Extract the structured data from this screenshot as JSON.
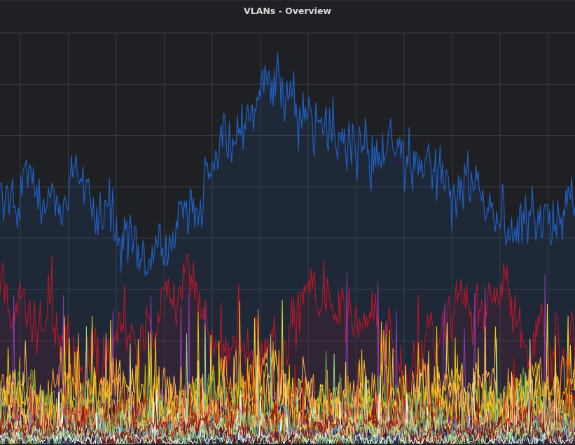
{
  "panel": {
    "title": "VLANs - Overview"
  },
  "chart_data": {
    "type": "line",
    "title": "VLANs - Overview",
    "xlabel": "",
    "ylabel": "",
    "grid": true,
    "legend": "none",
    "x_count": 500,
    "ylim": [
      0,
      100
    ],
    "series": [
      {
        "color": "#1f60c4",
        "fill": true,
        "level": 58,
        "amp": 12,
        "noise": 10,
        "spike": 3,
        "shape": "hump"
      },
      {
        "color": "#c4162a",
        "fill": true,
        "level": 28,
        "amp": 6,
        "noise": 10,
        "spike": 14,
        "shape": "flat"
      },
      {
        "color": "#8f3bb8",
        "fill": false,
        "level": 8,
        "amp": 2,
        "noise": 4,
        "spike": 30,
        "shape": "flat"
      },
      {
        "color": "#fade2a",
        "fill": false,
        "level": 10,
        "amp": 3,
        "noise": 9,
        "spike": 18,
        "shape": "flat"
      },
      {
        "color": "#ff9830",
        "fill": false,
        "level": 11,
        "amp": 3,
        "noise": 10,
        "spike": 16,
        "shape": "flat"
      },
      {
        "color": "#e0b400",
        "fill": false,
        "level": 9,
        "amp": 3,
        "noise": 8,
        "spike": 15,
        "shape": "flat"
      },
      {
        "color": "#56a64b",
        "fill": false,
        "level": 8,
        "amp": 3,
        "noise": 7,
        "spike": 10,
        "shape": "flat"
      },
      {
        "color": "#f2cc0c",
        "fill": false,
        "level": 7,
        "amp": 2,
        "noise": 7,
        "spike": 20,
        "shape": "flat"
      },
      {
        "color": "#ffb357",
        "fill": false,
        "level": 9,
        "amp": 2,
        "noise": 9,
        "spike": 14,
        "shape": "flat"
      },
      {
        "color": "#96d98d",
        "fill": false,
        "level": 5,
        "amp": 2,
        "noise": 6,
        "spike": 22,
        "shape": "flat"
      },
      {
        "color": "#bf1b00",
        "fill": false,
        "level": 6,
        "amp": 2,
        "noise": 6,
        "spike": 12,
        "shape": "flat"
      },
      {
        "color": "#8a6d3b",
        "fill": false,
        "level": 5,
        "amp": 2,
        "noise": 5,
        "spike": 8,
        "shape": "flat"
      },
      {
        "color": "#e24d42",
        "fill": false,
        "level": 4,
        "amp": 2,
        "noise": 5,
        "spike": 10,
        "shape": "flat"
      },
      {
        "color": "#6d1f62",
        "fill": false,
        "level": 3,
        "amp": 1,
        "noise": 3,
        "spike": 6,
        "shape": "flat"
      },
      {
        "color": "#f4d598",
        "fill": false,
        "level": 4,
        "amp": 1,
        "noise": 5,
        "spike": 18,
        "shape": "flat"
      },
      {
        "color": "#5195ce",
        "fill": false,
        "level": 2,
        "amp": 1,
        "noise": 3,
        "spike": 6,
        "shape": "flat"
      },
      {
        "color": "#ffffff",
        "fill": false,
        "level": 1,
        "amp": 0,
        "noise": 2,
        "spike": 10,
        "shape": "flat"
      },
      {
        "color": "#7eb26d",
        "fill": false,
        "level": 3,
        "amp": 1,
        "noise": 4,
        "spike": 9,
        "shape": "flat"
      },
      {
        "color": "#b7dbab",
        "fill": false,
        "level": 2,
        "amp": 1,
        "noise": 3,
        "spike": 8,
        "shape": "flat"
      },
      {
        "color": "#890f02",
        "fill": false,
        "level": 3,
        "amp": 1,
        "noise": 3,
        "spike": 6,
        "shape": "flat"
      }
    ],
    "colors": {
      "panel_bg": "#1f2023",
      "grid": "#3a3b3f",
      "title": "#d8d9da"
    }
  }
}
